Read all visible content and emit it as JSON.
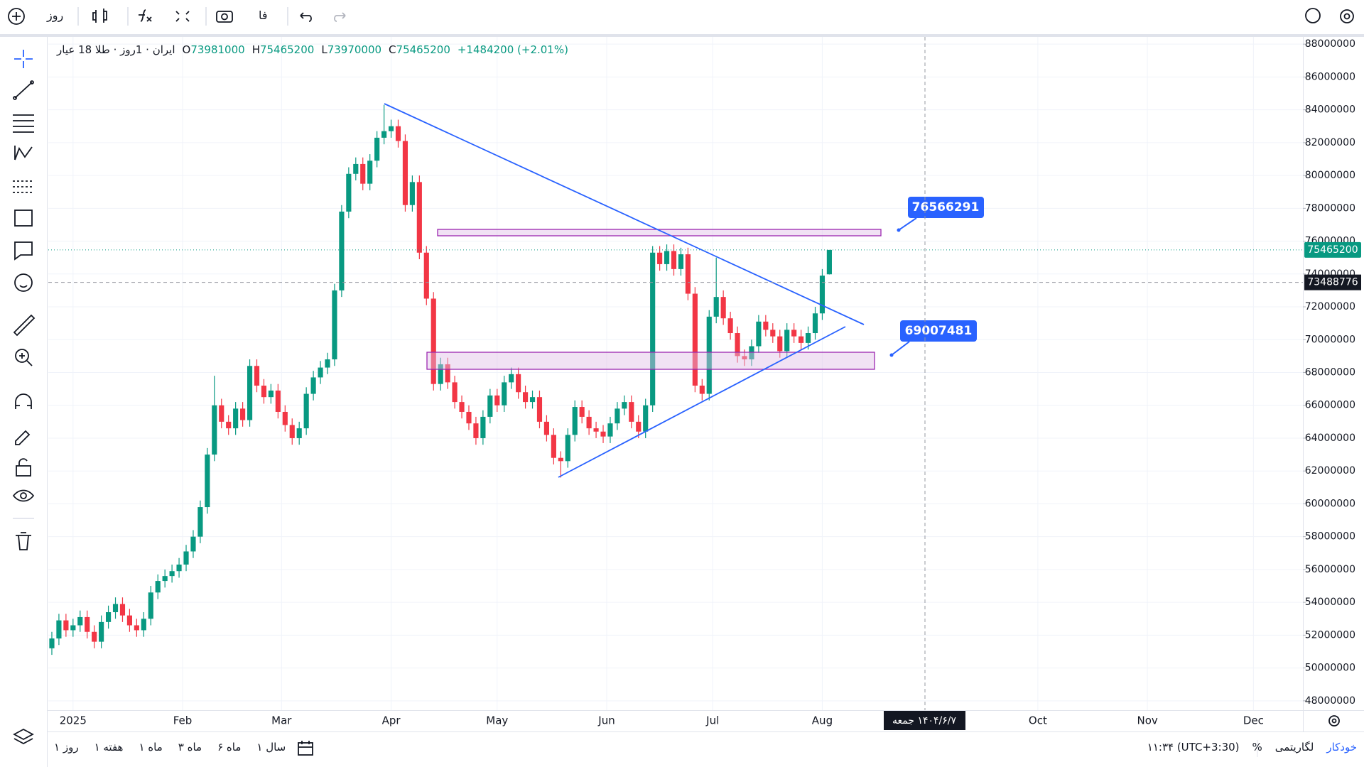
{
  "toolbar": {
    "interval": "روز",
    "language": "فا"
  },
  "chart_data": {
    "type": "candlestick",
    "symbol": "ایران · 1روز · طلا 18 عیار",
    "ohlc_labels": [
      "O",
      "H",
      "L",
      "C"
    ],
    "change": "+1484200 (+2.01%)",
    "up_color": "#089981",
    "down_color": "#f23645",
    "grid": true,
    "x": [
      -6,
      -4,
      -2,
      0,
      2,
      4,
      6,
      8,
      10,
      12,
      14,
      16,
      18,
      20,
      22,
      24,
      26,
      28,
      30,
      32,
      34,
      36,
      38,
      40,
      42,
      44,
      46,
      48,
      50,
      52,
      54,
      56,
      58,
      60,
      62,
      64,
      66,
      68,
      70,
      72,
      74,
      76,
      78,
      80,
      82,
      84,
      86,
      88,
      90,
      92,
      94,
      96,
      98,
      100,
      102,
      104,
      106,
      108,
      110,
      112,
      114,
      116,
      118,
      120,
      122,
      124,
      126,
      128,
      130,
      132,
      134,
      136,
      138,
      140,
      142,
      144,
      146,
      148,
      150,
      152,
      154,
      156,
      158,
      160,
      162,
      164,
      166,
      168,
      170,
      172,
      174,
      176,
      178,
      180,
      182,
      184,
      186,
      188,
      190,
      192,
      194,
      196,
      198,
      200,
      202,
      204,
      206,
      208,
      210,
      212,
      214
    ],
    "open": [
      51200000,
      51800000,
      52900000,
      52300000,
      52600000,
      53100000,
      52200000,
      51600000,
      52800000,
      53400000,
      53900000,
      53200000,
      52600000,
      52300000,
      53000000,
      54600000,
      55300000,
      55600000,
      55900000,
      56300000,
      57100000,
      58000000,
      59800000,
      63000000,
      66000000,
      65000000,
      64600000,
      65800000,
      65100000,
      68400000,
      67200000,
      66500000,
      66900000,
      65600000,
      64800000,
      64000000,
      64600000,
      66700000,
      67700000,
      68300000,
      68800000,
      73000000,
      77800000,
      80100000,
      80700000,
      79500000,
      80900000,
      82300000,
      82700000,
      83000000,
      82100000,
      78200000,
      79600000,
      75300000,
      72500000,
      67300000,
      68500000,
      67400000,
      66200000,
      65600000,
      64900000,
      64000000,
      65300000,
      66600000,
      66000000,
      67400000,
      67900000,
      66800000,
      66200000,
      66500000,
      65000000,
      64200000,
      62800000,
      62600000,
      64200000,
      65900000,
      65300000,
      64600000,
      64400000,
      64100000,
      64900000,
      65800000,
      66200000,
      65000000,
      64400000,
      66000000,
      75300000,
      74600000,
      75400000,
      74300000,
      75200000,
      72800000,
      67200000,
      66700000,
      71400000,
      72600000,
      71300000,
      70400000,
      69000000,
      68800000,
      69600000,
      71100000,
      70600000,
      70200000,
      69300000,
      70600000,
      70200000,
      69800000,
      70400000,
      71600000,
      73981000
    ],
    "high": [
      52200000,
      53300000,
      53300000,
      53000000,
      53500000,
      53500000,
      52600000,
      53200000,
      53800000,
      54300000,
      54300000,
      53600000,
      53000000,
      53400000,
      55000000,
      55700000,
      56000000,
      56300000,
      56700000,
      57500000,
      58400000,
      60200000,
      63400000,
      67800000,
      66400000,
      65400000,
      66200000,
      66200000,
      68800000,
      68800000,
      67600000,
      67300000,
      67300000,
      66000000,
      65200000,
      65000000,
      67100000,
      68100000,
      68700000,
      69200000,
      73400000,
      78200000,
      80500000,
      81100000,
      81100000,
      81300000,
      82700000,
      84300000,
      83400000,
      83400000,
      82500000,
      80000000,
      80000000,
      75700000,
      72900000,
      68900000,
      68900000,
      67800000,
      66600000,
      66000000,
      65300000,
      65700000,
      67000000,
      67000000,
      67800000,
      68300000,
      68300000,
      67200000,
      66900000,
      66900000,
      65400000,
      64600000,
      63200000,
      64600000,
      66300000,
      66300000,
      65700000,
      65000000,
      64800000,
      65300000,
      66200000,
      66600000,
      66600000,
      65400000,
      66400000,
      75700000,
      75700000,
      75800000,
      75800000,
      75600000,
      75600000,
      73200000,
      67600000,
      71800000,
      75000000,
      73000000,
      71700000,
      70800000,
      69400000,
      70000000,
      71500000,
      71500000,
      71000000,
      70600000,
      71000000,
      71000000,
      70600000,
      70800000,
      72000000,
      74300000,
      75465200
    ],
    "low": [
      50800000,
      51400000,
      51900000,
      51900000,
      52200000,
      51800000,
      51200000,
      51200000,
      52400000,
      53000000,
      52800000,
      52200000,
      51900000,
      51900000,
      52600000,
      54200000,
      54900000,
      55200000,
      55500000,
      55900000,
      56700000,
      57600000,
      59400000,
      62600000,
      64600000,
      64200000,
      64200000,
      64700000,
      64700000,
      66800000,
      66100000,
      66100000,
      65200000,
      64400000,
      63600000,
      63600000,
      64200000,
      66300000,
      67300000,
      67900000,
      68400000,
      72600000,
      77400000,
      79700000,
      79100000,
      79100000,
      80500000,
      81900000,
      82300000,
      81700000,
      77800000,
      77800000,
      74900000,
      72100000,
      66900000,
      66900000,
      67000000,
      65800000,
      65200000,
      64500000,
      63600000,
      63600000,
      64900000,
      65600000,
      65600000,
      67000000,
      66400000,
      65800000,
      65800000,
      64600000,
      63800000,
      62400000,
      61600000,
      62200000,
      63800000,
      64900000,
      64200000,
      64000000,
      63700000,
      63700000,
      64500000,
      65400000,
      64600000,
      64000000,
      64000000,
      65600000,
      74200000,
      74200000,
      73900000,
      73900000,
      72400000,
      66800000,
      66300000,
      66300000,
      71000000,
      70900000,
      70000000,
      68600000,
      68400000,
      68400000,
      69200000,
      70200000,
      69800000,
      68900000,
      68900000,
      69800000,
      69400000,
      69400000,
      70000000,
      71200000,
      73970000
    ],
    "close": [
      51800000,
      52900000,
      52300000,
      52600000,
      53100000,
      52200000,
      51600000,
      52800000,
      53400000,
      53900000,
      53200000,
      52600000,
      52300000,
      53000000,
      54600000,
      55300000,
      55600000,
      55900000,
      56300000,
      57100000,
      58000000,
      59800000,
      63000000,
      66000000,
      65000000,
      64600000,
      65800000,
      65100000,
      68400000,
      67200000,
      66500000,
      66900000,
      65600000,
      64800000,
      64000000,
      64600000,
      66700000,
      67700000,
      68300000,
      68800000,
      73000000,
      77800000,
      80100000,
      80700000,
      79500000,
      80900000,
      82300000,
      82700000,
      83000000,
      82100000,
      78200000,
      79600000,
      75300000,
      72500000,
      67300000,
      68500000,
      67400000,
      66200000,
      65600000,
      64900000,
      64000000,
      65300000,
      66600000,
      66000000,
      67400000,
      67900000,
      66800000,
      66200000,
      66500000,
      65000000,
      64200000,
      62800000,
      62600000,
      64200000,
      65900000,
      65300000,
      64600000,
      64400000,
      64100000,
      64900000,
      65800000,
      66200000,
      65000000,
      64400000,
      66000000,
      75300000,
      74600000,
      75400000,
      74300000,
      75200000,
      72800000,
      67200000,
      66700000,
      71400000,
      72600000,
      71300000,
      70400000,
      69000000,
      68800000,
      69600000,
      71100000,
      70600000,
      70200000,
      69300000,
      70600000,
      70200000,
      69800000,
      70400000,
      71600000,
      73900000,
      75465200
    ],
    "xlim": [
      -7,
      348
    ],
    "xticks": [
      {
        "value": 0,
        "label": "2025"
      },
      {
        "value": 31,
        "label": "Feb"
      },
      {
        "value": 59,
        "label": "Mar"
      },
      {
        "value": 90,
        "label": "Apr"
      },
      {
        "value": 120,
        "label": "May"
      },
      {
        "value": 151,
        "label": "Jun"
      },
      {
        "value": 181,
        "label": "Jul"
      },
      {
        "value": 212,
        "label": "Aug"
      },
      {
        "value": 273,
        "label": "Oct"
      },
      {
        "value": 304,
        "label": "Nov"
      },
      {
        "value": 334,
        "label": "Dec"
      }
    ],
    "ylim": [
      47430000,
      88440000
    ],
    "yticks": [
      48000000,
      50000000,
      52000000,
      54000000,
      56000000,
      58000000,
      60000000,
      62000000,
      64000000,
      66000000,
      68000000,
      70000000,
      72000000,
      74000000,
      76000000,
      78000000,
      80000000,
      82000000,
      84000000,
      86000000,
      88000000
    ],
    "crosshair": {
      "price": 73488776,
      "date": "۱۴۰۴/۶/۷ جمعه"
    },
    "annotations": [
      76566291,
      69007481
    ]
  },
  "bottom_bar": {
    "ranges": [
      "روز ۱",
      "هفته ۱",
      "ماه ۱",
      "ماه ۳",
      "ماه ۶",
      "سال ۱"
    ],
    "time": "۱۱:۳۴ (UTC+3:30)",
    "scale_modes": [
      "%",
      "لگاریتمی",
      "خودکار"
    ]
  }
}
